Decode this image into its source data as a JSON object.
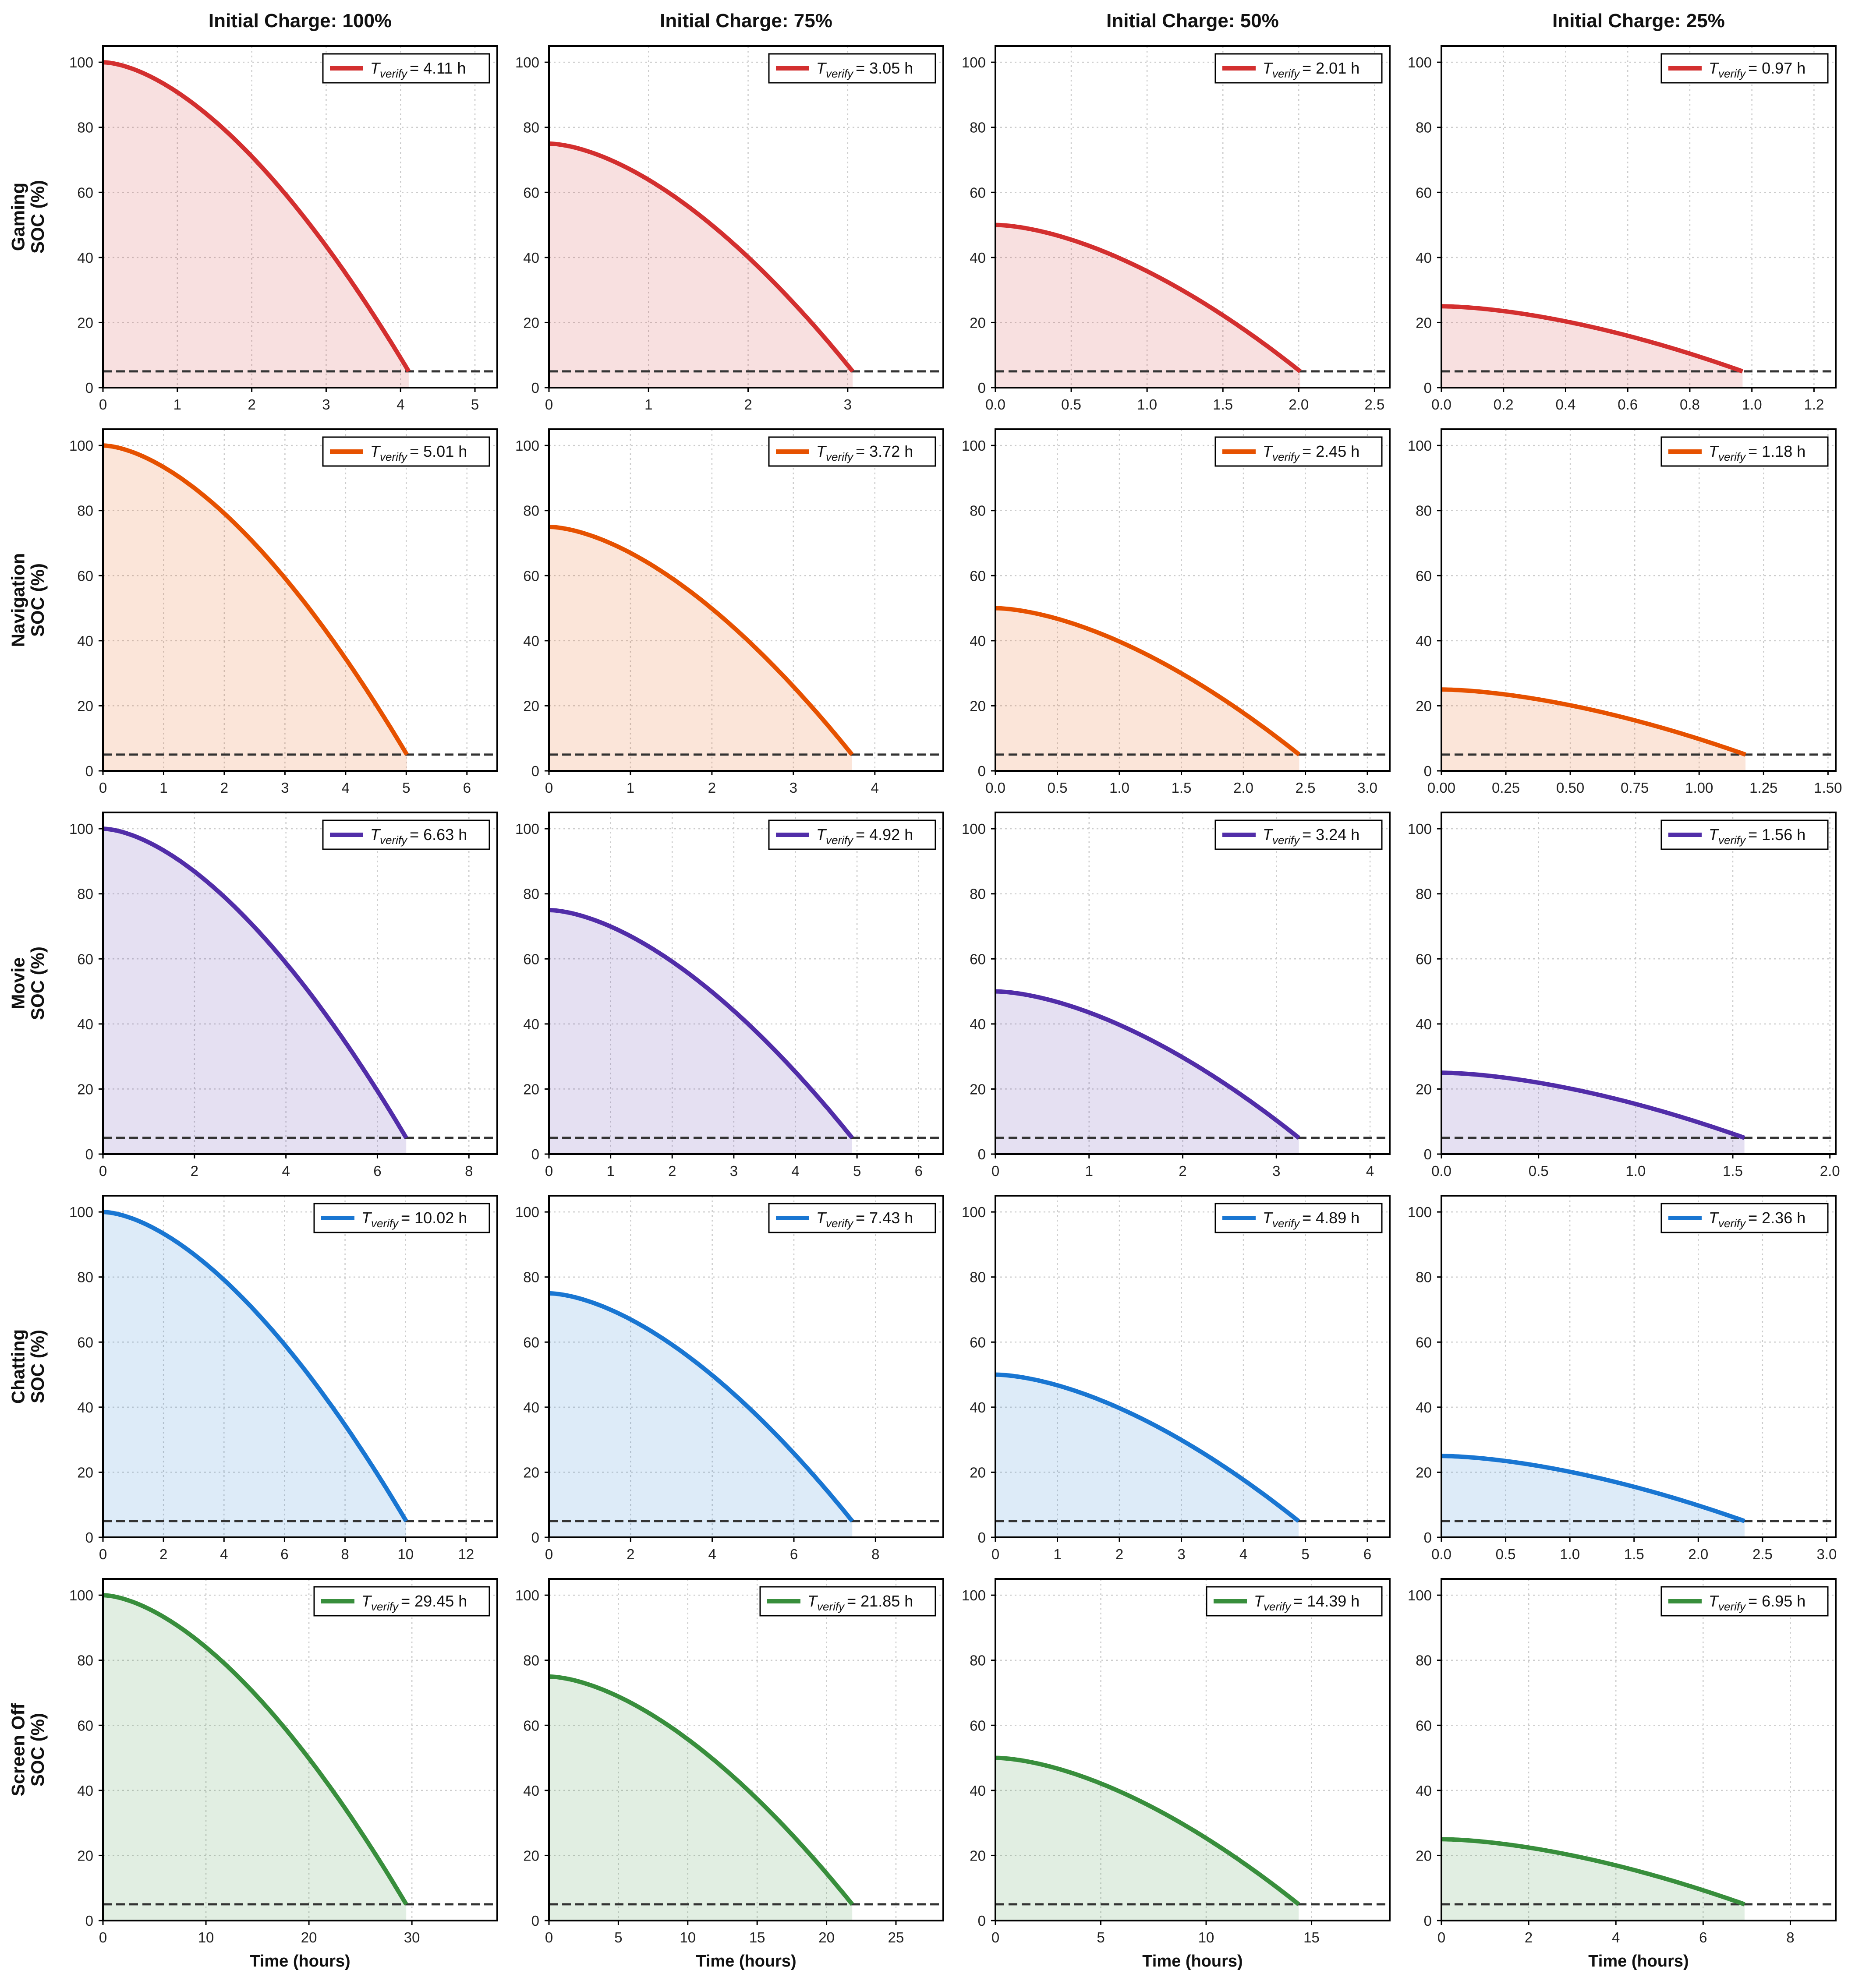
{
  "chart_data": {
    "type": "line",
    "figure": {
      "column_titles": [
        "Initial Charge: 100%",
        "Initial Charge: 75%",
        "Initial Charge: 50%",
        "Initial Charge: 25%"
      ],
      "row_labels": [
        "Gaming",
        "Navigation",
        "Movie",
        "Chatting",
        "Screen Off"
      ],
      "ylabel": "SOC (%)",
      "xlabel": "Time (hours)",
      "ylim": [
        0,
        105
      ],
      "yticks": [
        0,
        20,
        40,
        60,
        80,
        100
      ],
      "threshold_soc": 5,
      "legend_template": "= {value} h",
      "legend_symbol_main": "T",
      "legend_symbol_sub": "verify",
      "legend_position": "top-right",
      "grid": true,
      "colors": {
        "Gaming": "#d32f2f",
        "Navigation": "#e65100",
        "Movie": "#512da8",
        "Chatting": "#1976d2",
        "Screen Off": "#388e3c",
        "threshold": "#333333",
        "grid": "#cccccc",
        "frame": "#000000"
      }
    },
    "panels": [
      [
        {
          "row": "Gaming",
          "initial_soc": 100,
          "t_verify": 4.11,
          "legend_value": "4.11",
          "xlim": [
            0,
            5.3
          ],
          "xticks": [
            0,
            1,
            2,
            3,
            4,
            5
          ],
          "xtick_labels": [
            "0",
            "1",
            "2",
            "3",
            "4",
            "5"
          ]
        },
        {
          "row": "Gaming",
          "initial_soc": 75,
          "t_verify": 3.05,
          "legend_value": "3.05",
          "xlim": [
            0,
            3.96
          ],
          "xticks": [
            0,
            1,
            2,
            3
          ],
          "xtick_labels": [
            "0",
            "1",
            "2",
            "3"
          ]
        },
        {
          "row": "Gaming",
          "initial_soc": 50,
          "t_verify": 2.01,
          "legend_value": "2.01",
          "xlim": [
            0,
            2.6
          ],
          "xticks": [
            0,
            0.5,
            1,
            1.5,
            2,
            2.5
          ],
          "xtick_labels": [
            "0.0",
            "0.5",
            "1.0",
            "1.5",
            "2.0",
            "2.5"
          ]
        },
        {
          "row": "Gaming",
          "initial_soc": 25,
          "t_verify": 0.97,
          "legend_value": "0.97",
          "xlim": [
            0,
            1.27
          ],
          "xticks": [
            0,
            0.2,
            0.4,
            0.6,
            0.8,
            1.0,
            1.2
          ],
          "xtick_labels": [
            "0.0",
            "0.2",
            "0.4",
            "0.6",
            "0.8",
            "1.0",
            "1.2"
          ]
        }
      ],
      [
        {
          "row": "Navigation",
          "initial_soc": 100,
          "t_verify": 5.01,
          "legend_value": "5.01",
          "xlim": [
            0,
            6.5
          ],
          "xticks": [
            0,
            1,
            2,
            3,
            4,
            5,
            6
          ],
          "xtick_labels": [
            "0",
            "1",
            "2",
            "3",
            "4",
            "5",
            "6"
          ]
        },
        {
          "row": "Navigation",
          "initial_soc": 75,
          "t_verify": 3.72,
          "legend_value": "3.72",
          "xlim": [
            0,
            4.84
          ],
          "xticks": [
            0,
            1,
            2,
            3,
            4
          ],
          "xtick_labels": [
            "0",
            "1",
            "2",
            "3",
            "4"
          ]
        },
        {
          "row": "Navigation",
          "initial_soc": 50,
          "t_verify": 2.45,
          "legend_value": "2.45",
          "xlim": [
            0,
            3.18
          ],
          "xticks": [
            0,
            0.5,
            1,
            1.5,
            2,
            2.5,
            3
          ],
          "xtick_labels": [
            "0.0",
            "0.5",
            "1.0",
            "1.5",
            "2.0",
            "2.5",
            "3.0"
          ]
        },
        {
          "row": "Navigation",
          "initial_soc": 25,
          "t_verify": 1.18,
          "legend_value": "1.18",
          "xlim": [
            0,
            1.53
          ],
          "xticks": [
            0,
            0.25,
            0.5,
            0.75,
            1.0,
            1.25,
            1.5
          ],
          "xtick_labels": [
            "0.00",
            "0.25",
            "0.50",
            "0.75",
            "1.00",
            "1.25",
            "1.50"
          ]
        }
      ],
      [
        {
          "row": "Movie",
          "initial_soc": 100,
          "t_verify": 6.63,
          "legend_value": "6.63",
          "xlim": [
            0,
            8.62
          ],
          "xticks": [
            0,
            2,
            4,
            6,
            8
          ],
          "xtick_labels": [
            "0",
            "2",
            "4",
            "6",
            "8"
          ]
        },
        {
          "row": "Movie",
          "initial_soc": 75,
          "t_verify": 4.92,
          "legend_value": "4.92",
          "xlim": [
            0,
            6.4
          ],
          "xticks": [
            0,
            1,
            2,
            3,
            4,
            5,
            6
          ],
          "xtick_labels": [
            "0",
            "1",
            "2",
            "3",
            "4",
            "5",
            "6"
          ]
        },
        {
          "row": "Movie",
          "initial_soc": 50,
          "t_verify": 3.24,
          "legend_value": "3.24",
          "xlim": [
            0,
            4.21
          ],
          "xticks": [
            0,
            1,
            2,
            3,
            4
          ],
          "xtick_labels": [
            "0",
            "1",
            "2",
            "3",
            "4"
          ]
        },
        {
          "row": "Movie",
          "initial_soc": 25,
          "t_verify": 1.56,
          "legend_value": "1.56",
          "xlim": [
            0,
            2.03
          ],
          "xticks": [
            0,
            0.5,
            1.0,
            1.5,
            2.0
          ],
          "xtick_labels": [
            "0.0",
            "0.5",
            "1.0",
            "1.5",
            "2.0"
          ]
        }
      ],
      [
        {
          "row": "Chatting",
          "initial_soc": 100,
          "t_verify": 10.02,
          "legend_value": "10.02",
          "xlim": [
            0,
            13.03
          ],
          "xticks": [
            0,
            2,
            4,
            6,
            8,
            10,
            12
          ],
          "xtick_labels": [
            "0",
            "2",
            "4",
            "6",
            "8",
            "10",
            "12"
          ]
        },
        {
          "row": "Chatting",
          "initial_soc": 75,
          "t_verify": 7.43,
          "legend_value": "7.43",
          "xlim": [
            0,
            9.66
          ],
          "xticks": [
            0,
            2,
            4,
            6,
            8
          ],
          "xtick_labels": [
            "0",
            "2",
            "4",
            "6",
            "8"
          ]
        },
        {
          "row": "Chatting",
          "initial_soc": 50,
          "t_verify": 4.89,
          "legend_value": "4.89",
          "xlim": [
            0,
            6.36
          ],
          "xticks": [
            0,
            1,
            2,
            3,
            4,
            5,
            6
          ],
          "xtick_labels": [
            "0",
            "1",
            "2",
            "3",
            "4",
            "5",
            "6"
          ]
        },
        {
          "row": "Chatting",
          "initial_soc": 25,
          "t_verify": 2.36,
          "legend_value": "2.36",
          "xlim": [
            0,
            3.07
          ],
          "xticks": [
            0,
            0.5,
            1.0,
            1.5,
            2.0,
            2.5,
            3.0
          ],
          "xtick_labels": [
            "0.0",
            "0.5",
            "1.0",
            "1.5",
            "2.0",
            "2.5",
            "3.0"
          ]
        }
      ],
      [
        {
          "row": "Screen Off",
          "initial_soc": 100,
          "t_verify": 29.45,
          "legend_value": "29.45",
          "xlim": [
            0,
            38.29
          ],
          "xticks": [
            0,
            10,
            20,
            30
          ],
          "xtick_labels": [
            "0",
            "10",
            "20",
            "30"
          ]
        },
        {
          "row": "Screen Off",
          "initial_soc": 75,
          "t_verify": 21.85,
          "legend_value": "21.85",
          "xlim": [
            0,
            28.41
          ],
          "xticks": [
            0,
            5,
            10,
            15,
            20,
            25
          ],
          "xtick_labels": [
            "0",
            "5",
            "10",
            "15",
            "20",
            "25"
          ]
        },
        {
          "row": "Screen Off",
          "initial_soc": 50,
          "t_verify": 14.39,
          "legend_value": "14.39",
          "xlim": [
            0,
            18.71
          ],
          "xticks": [
            0,
            5,
            10,
            15
          ],
          "xtick_labels": [
            "0",
            "5",
            "10",
            "15"
          ]
        },
        {
          "row": "Screen Off",
          "initial_soc": 25,
          "t_verify": 6.95,
          "legend_value": "6.95",
          "xlim": [
            0,
            9.04
          ],
          "xticks": [
            0,
            2,
            4,
            6,
            8
          ],
          "xtick_labels": [
            "0",
            "2",
            "4",
            "6",
            "8"
          ]
        }
      ]
    ]
  }
}
